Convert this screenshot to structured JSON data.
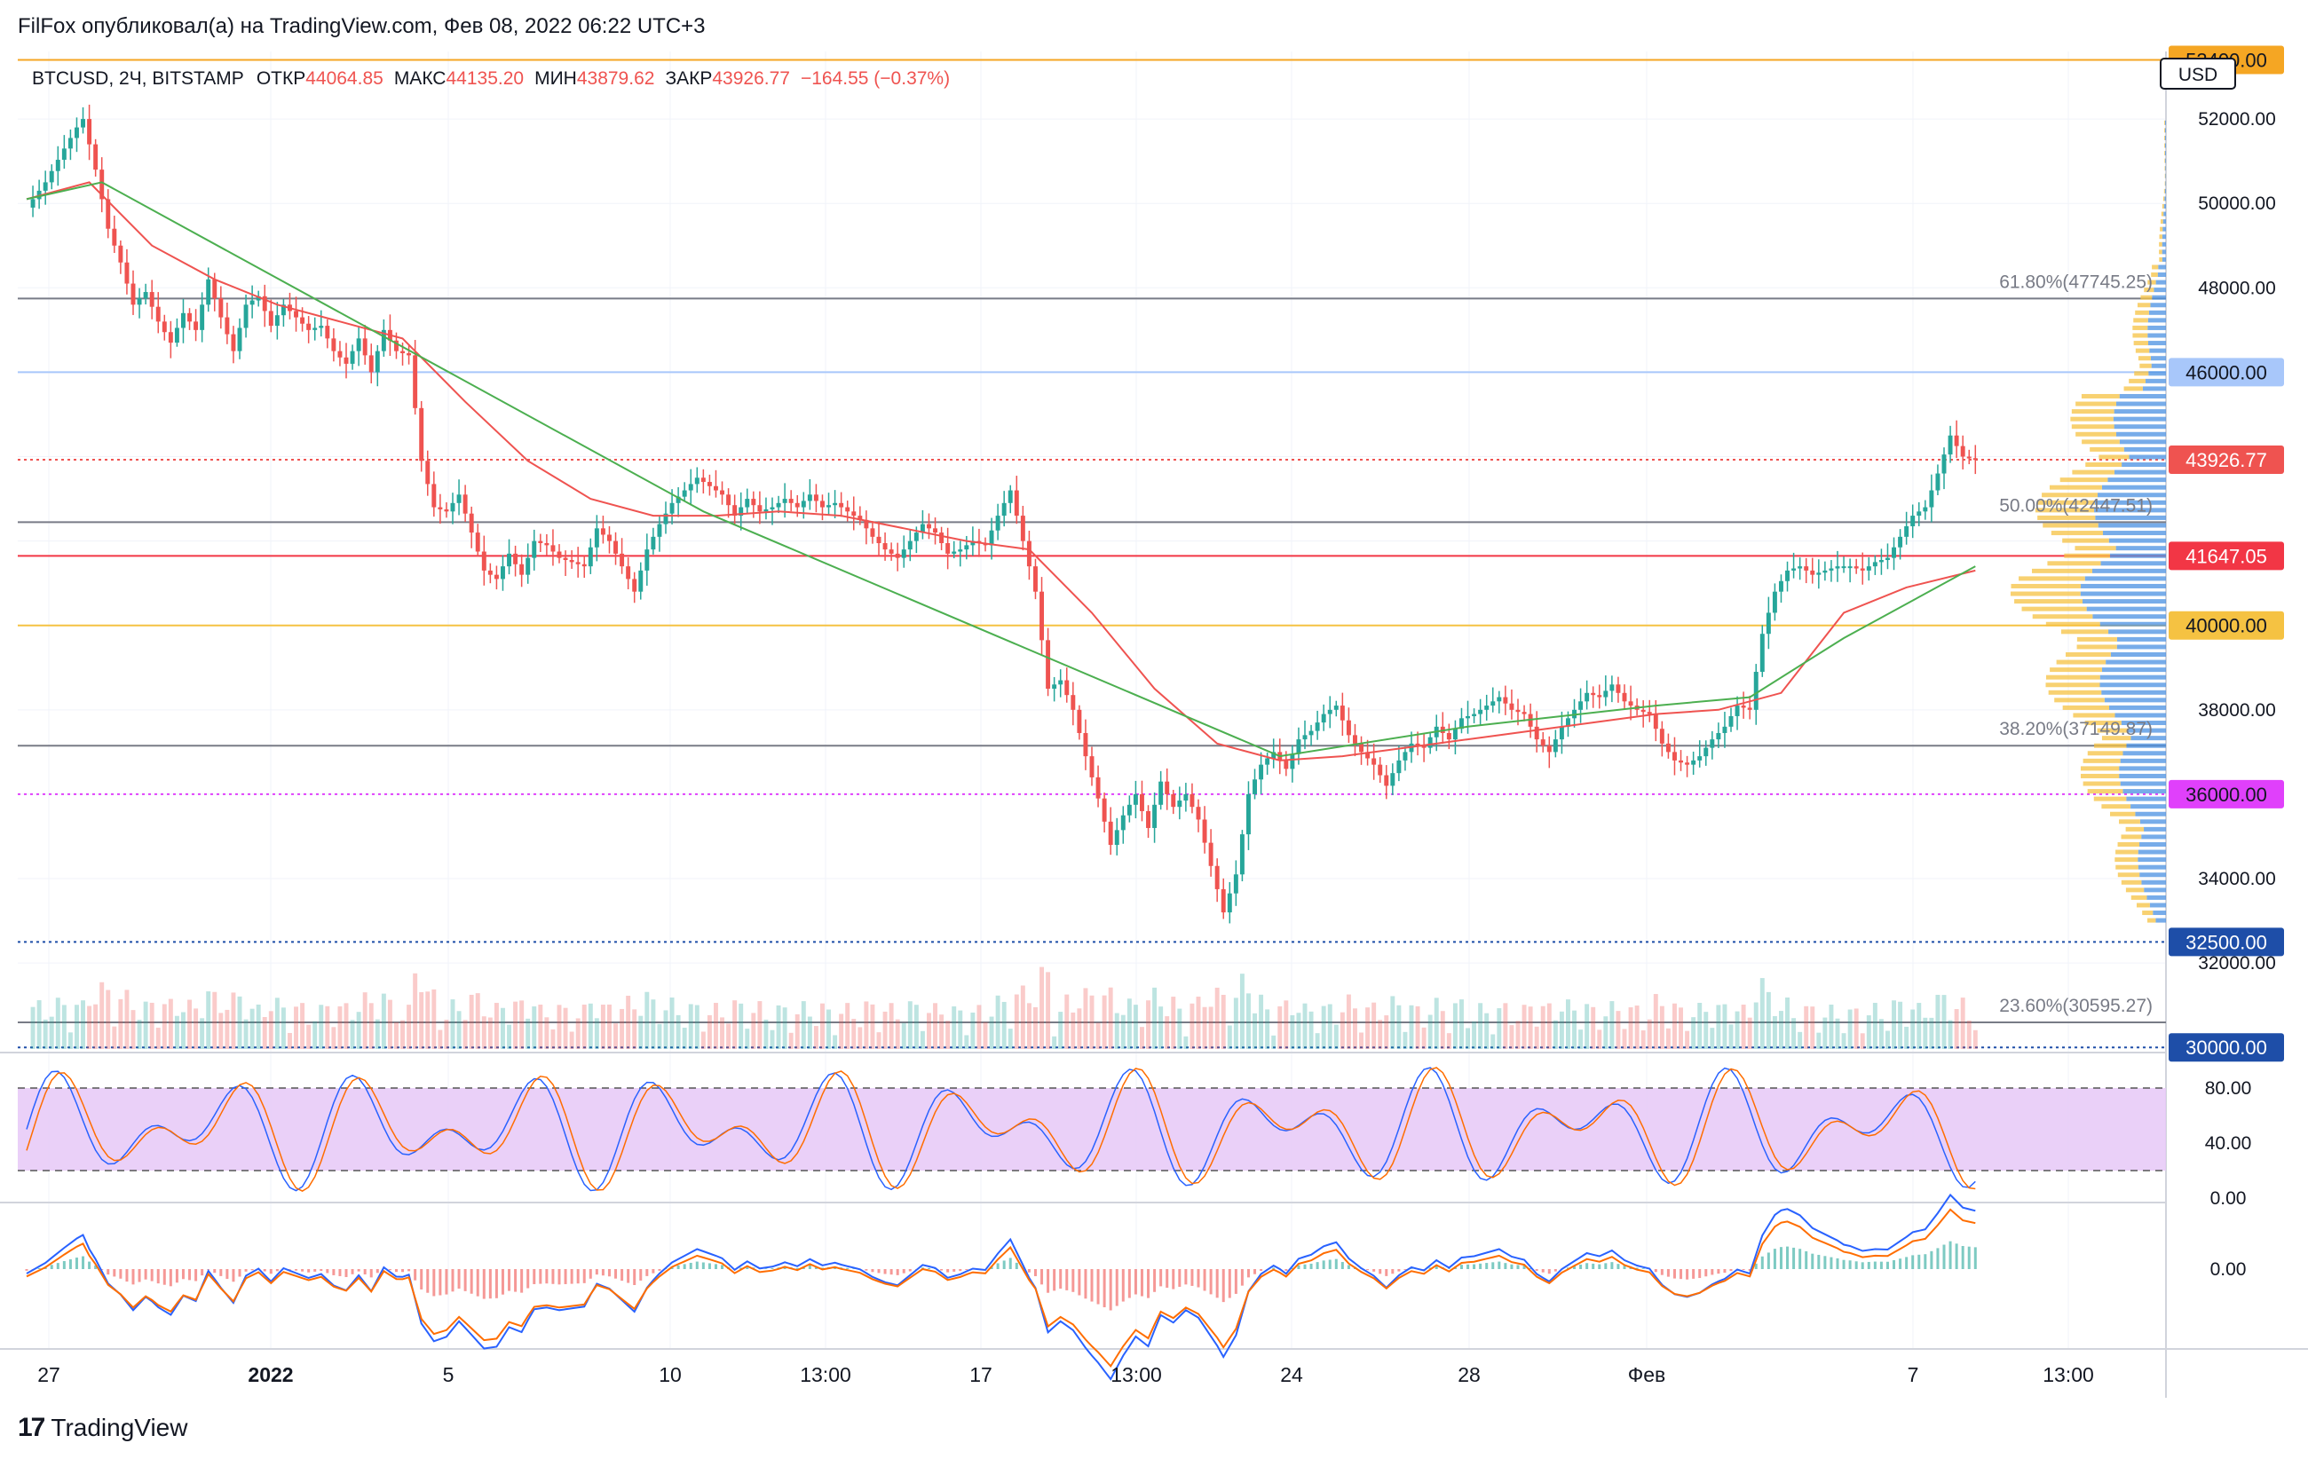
{
  "header": {
    "title": "FilFox опубликовал(а) на TradingView.com, Фев 08, 2022 06:22 UTC+3"
  },
  "footer": {
    "brand": "TradingView"
  },
  "colors": {
    "up": "#26a69a",
    "down": "#ef5350",
    "ma": "#ef5350",
    "ma2": "#4caf50",
    "rsi_bg": "#e6c8f7",
    "price_line": "#ef5350",
    "volume_profile_up": "#4a90e2",
    "volume_profile_down": "#f5c242"
  },
  "chart_data": {
    "type": "candlestick",
    "symbol_line": {
      "symbol": "BTCUSD, 2Ч, BITSTAMP",
      "open_label": "ОТКР",
      "open": "44064.85",
      "high_label": "МАКС",
      "high": "44135.20",
      "low_label": "МИН",
      "low": "43879.62",
      "close_label": "ЗАКР",
      "close": "43926.77",
      "change": "−164.55 (−0.37%)"
    },
    "currency": "USD",
    "ylim": [
      29900,
      53600
    ],
    "y_ticks": [
      "52000.00",
      "50000.00",
      "48000.00",
      "38000.00",
      "34000.00",
      "32000.00"
    ],
    "x_ticks": [
      "27",
      "2022",
      "5",
      "10",
      "13:00",
      "17",
      "13:00",
      "24",
      "28",
      "Фев",
      "7",
      "13:00"
    ],
    "price_labels": [
      {
        "value": 53400,
        "text": "53400.00",
        "color": "#f5a623",
        "text_color": "#131722"
      },
      {
        "value": 46000,
        "text": "46000.00",
        "color": "#a8c7fa",
        "text_color": "#131722"
      },
      {
        "value": 43926.77,
        "text": "43926.77",
        "color": "#ef5350",
        "text_color": "#ffffff"
      },
      {
        "value": 41647.05,
        "text": "41647.05",
        "color": "#f23645",
        "text_color": "#ffffff"
      },
      {
        "value": 40000,
        "text": "40000.00",
        "color": "#f5c242",
        "text_color": "#131722"
      },
      {
        "value": 36000,
        "text": "36000.00",
        "color": "#e040fb",
        "text_color": "#131722"
      },
      {
        "value": 32500,
        "text": "32500.00",
        "color": "#1e4ea8",
        "text_color": "#ffffff"
      },
      {
        "value": 30000,
        "text": "30000.00",
        "color": "#1e4ea8",
        "text_color": "#ffffff"
      }
    ],
    "horizontal_lines": [
      {
        "value": 53400,
        "color": "#f5a623",
        "style": "solid"
      },
      {
        "value": 47745.25,
        "color": "#787b86",
        "style": "solid"
      },
      {
        "value": 46000,
        "color": "#a8c7fa",
        "style": "solid"
      },
      {
        "value": 43926.77,
        "color": "#ef5350",
        "style": "dotted"
      },
      {
        "value": 42447.51,
        "color": "#787b86",
        "style": "solid"
      },
      {
        "value": 41647.05,
        "color": "#f23645",
        "style": "solid"
      },
      {
        "value": 40000,
        "color": "#f5c242",
        "style": "solid"
      },
      {
        "value": 37149.87,
        "color": "#787b86",
        "style": "solid"
      },
      {
        "value": 36000,
        "color": "#e040fb",
        "style": "dotted"
      },
      {
        "value": 32500,
        "color": "#1e4ea8",
        "style": "dotted"
      },
      {
        "value": 30595.27,
        "color": "#787b86",
        "style": "solid"
      },
      {
        "value": 30000,
        "color": "#1e4ea8",
        "style": "dotted"
      }
    ],
    "fib_labels": [
      {
        "value": 47745.25,
        "text": "61.80%(47745.25)"
      },
      {
        "value": 42447.51,
        "text": "50.00%(42447.51)"
      },
      {
        "value": 37149.87,
        "text": "38.20%(37149.87)"
      },
      {
        "value": 30595.27,
        "text": "23.60%(30595.27)"
      }
    ],
    "price_path": [
      [
        0,
        49900
      ],
      [
        3,
        50500
      ],
      [
        6,
        51300
      ],
      [
        8,
        51800
      ],
      [
        9,
        52000
      ],
      [
        11,
        50800
      ],
      [
        13,
        49400
      ],
      [
        15,
        48600
      ],
      [
        17,
        47600
      ],
      [
        19,
        47900
      ],
      [
        21,
        47200
      ],
      [
        23,
        46700
      ],
      [
        25,
        47400
      ],
      [
        27,
        47000
      ],
      [
        29,
        48200
      ],
      [
        31,
        47300
      ],
      [
        33,
        46500
      ],
      [
        35,
        47600
      ],
      [
        37,
        47800
      ],
      [
        39,
        47100
      ],
      [
        41,
        47600
      ],
      [
        43,
        47300
      ],
      [
        45,
        47000
      ],
      [
        47,
        47100
      ],
      [
        49,
        46500
      ],
      [
        51,
        46200
      ],
      [
        53,
        46800
      ],
      [
        55,
        46000
      ],
      [
        57,
        47000
      ],
      [
        59,
        46500
      ],
      [
        61,
        46400
      ],
      [
        63,
        43900
      ],
      [
        65,
        42800
      ],
      [
        67,
        42700
      ],
      [
        69,
        43100
      ],
      [
        71,
        42200
      ],
      [
        73,
        41300
      ],
      [
        75,
        41100
      ],
      [
        77,
        41700
      ],
      [
        79,
        41200
      ],
      [
        81,
        42000
      ],
      [
        83,
        41900
      ],
      [
        85,
        41600
      ],
      [
        87,
        41500
      ],
      [
        89,
        41400
      ],
      [
        91,
        42300
      ],
      [
        93,
        42000
      ],
      [
        95,
        41400
      ],
      [
        97,
        40800
      ],
      [
        99,
        41800
      ],
      [
        101,
        42400
      ],
      [
        103,
        42900
      ],
      [
        105,
        43200
      ],
      [
        107,
        43500
      ],
      [
        109,
        43300
      ],
      [
        111,
        43100
      ],
      [
        113,
        42600
      ],
      [
        115,
        43000
      ],
      [
        117,
        42700
      ],
      [
        119,
        42800
      ],
      [
        121,
        43000
      ],
      [
        123,
        42800
      ],
      [
        125,
        43100
      ],
      [
        127,
        42800
      ],
      [
        129,
        42900
      ],
      [
        131,
        42700
      ],
      [
        133,
        42500
      ],
      [
        135,
        42100
      ],
      [
        137,
        41800
      ],
      [
        139,
        41600
      ],
      [
        141,
        42000
      ],
      [
        143,
        42400
      ],
      [
        145,
        42200
      ],
      [
        147,
        41700
      ],
      [
        149,
        41800
      ],
      [
        151,
        42000
      ],
      [
        153,
        41900
      ],
      [
        155,
        42600
      ],
      [
        157,
        43200
      ],
      [
        159,
        42000
      ],
      [
        161,
        40800
      ],
      [
        163,
        38500
      ],
      [
        165,
        38700
      ],
      [
        167,
        38000
      ],
      [
        169,
        36900
      ],
      [
        171,
        35900
      ],
      [
        173,
        34800
      ],
      [
        175,
        35500
      ],
      [
        177,
        36000
      ],
      [
        179,
        35200
      ],
      [
        181,
        36300
      ],
      [
        183,
        35700
      ],
      [
        185,
        36000
      ],
      [
        187,
        35400
      ],
      [
        189,
        34300
      ],
      [
        191,
        33200
      ],
      [
        193,
        34100
      ],
      [
        195,
        36000
      ],
      [
        197,
        36700
      ],
      [
        199,
        37000
      ],
      [
        201,
        36600
      ],
      [
        203,
        37300
      ],
      [
        205,
        37500
      ],
      [
        207,
        37900
      ],
      [
        209,
        38100
      ],
      [
        211,
        37400
      ],
      [
        213,
        37000
      ],
      [
        215,
        36700
      ],
      [
        217,
        36200
      ],
      [
        219,
        36800
      ],
      [
        221,
        37200
      ],
      [
        223,
        37100
      ],
      [
        225,
        37600
      ],
      [
        227,
        37300
      ],
      [
        229,
        37800
      ],
      [
        231,
        37900
      ],
      [
        233,
        38100
      ],
      [
        235,
        38300
      ],
      [
        237,
        38000
      ],
      [
        239,
        37900
      ],
      [
        241,
        37300
      ],
      [
        243,
        37000
      ],
      [
        245,
        37600
      ],
      [
        247,
        38000
      ],
      [
        249,
        38400
      ],
      [
        251,
        38300
      ],
      [
        253,
        38600
      ],
      [
        255,
        38200
      ],
      [
        257,
        38000
      ],
      [
        259,
        37900
      ],
      [
        261,
        37200
      ],
      [
        263,
        36800
      ],
      [
        265,
        36700
      ],
      [
        267,
        36900
      ],
      [
        269,
        37300
      ],
      [
        271,
        37600
      ],
      [
        273,
        38100
      ],
      [
        275,
        38000
      ],
      [
        277,
        39800
      ],
      [
        279,
        40800
      ],
      [
        281,
        41300
      ],
      [
        283,
        41400
      ],
      [
        285,
        41200
      ],
      [
        287,
        41300
      ],
      [
        289,
        41400
      ],
      [
        291,
        41400
      ],
      [
        293,
        41300
      ],
      [
        295,
        41500
      ],
      [
        297,
        41600
      ],
      [
        299,
        42100
      ],
      [
        301,
        42600
      ],
      [
        303,
        42800
      ],
      [
        305,
        43600
      ],
      [
        307,
        44500
      ],
      [
        309,
        44000
      ],
      [
        311,
        43926.77
      ]
    ],
    "ma_path": [
      [
        0,
        50100
      ],
      [
        10,
        50500
      ],
      [
        20,
        49000
      ],
      [
        30,
        48200
      ],
      [
        40,
        47600
      ],
      [
        50,
        47200
      ],
      [
        60,
        46800
      ],
      [
        70,
        45300
      ],
      [
        80,
        43900
      ],
      [
        90,
        43000
      ],
      [
        100,
        42600
      ],
      [
        110,
        42600
      ],
      [
        120,
        42700
      ],
      [
        130,
        42600
      ],
      [
        140,
        42300
      ],
      [
        150,
        42000
      ],
      [
        160,
        41800
      ],
      [
        170,
        40300
      ],
      [
        180,
        38500
      ],
      [
        190,
        37200
      ],
      [
        200,
        36800
      ],
      [
        210,
        36900
      ],
      [
        220,
        37100
      ],
      [
        230,
        37300
      ],
      [
        240,
        37500
      ],
      [
        250,
        37700
      ],
      [
        260,
        37900
      ],
      [
        270,
        38000
      ],
      [
        280,
        38400
      ],
      [
        290,
        40300
      ],
      [
        300,
        40900
      ],
      [
        311,
        41300
      ]
    ],
    "ma2_path": [
      [
        0,
        50100
      ],
      [
        12,
        50500
      ],
      [
        108,
        42700
      ],
      [
        200,
        36900
      ],
      [
        230,
        37600
      ],
      [
        260,
        38100
      ],
      [
        275,
        38300
      ],
      [
        290,
        39700
      ],
      [
        311,
        41400
      ]
    ],
    "rsi_panel": {
      "ticks": [
        "80.00",
        "40.00",
        "0.00"
      ],
      "upper": 80,
      "lower": 20
    },
    "macd_panel": {
      "ticks": [
        "0.00"
      ]
    }
  }
}
